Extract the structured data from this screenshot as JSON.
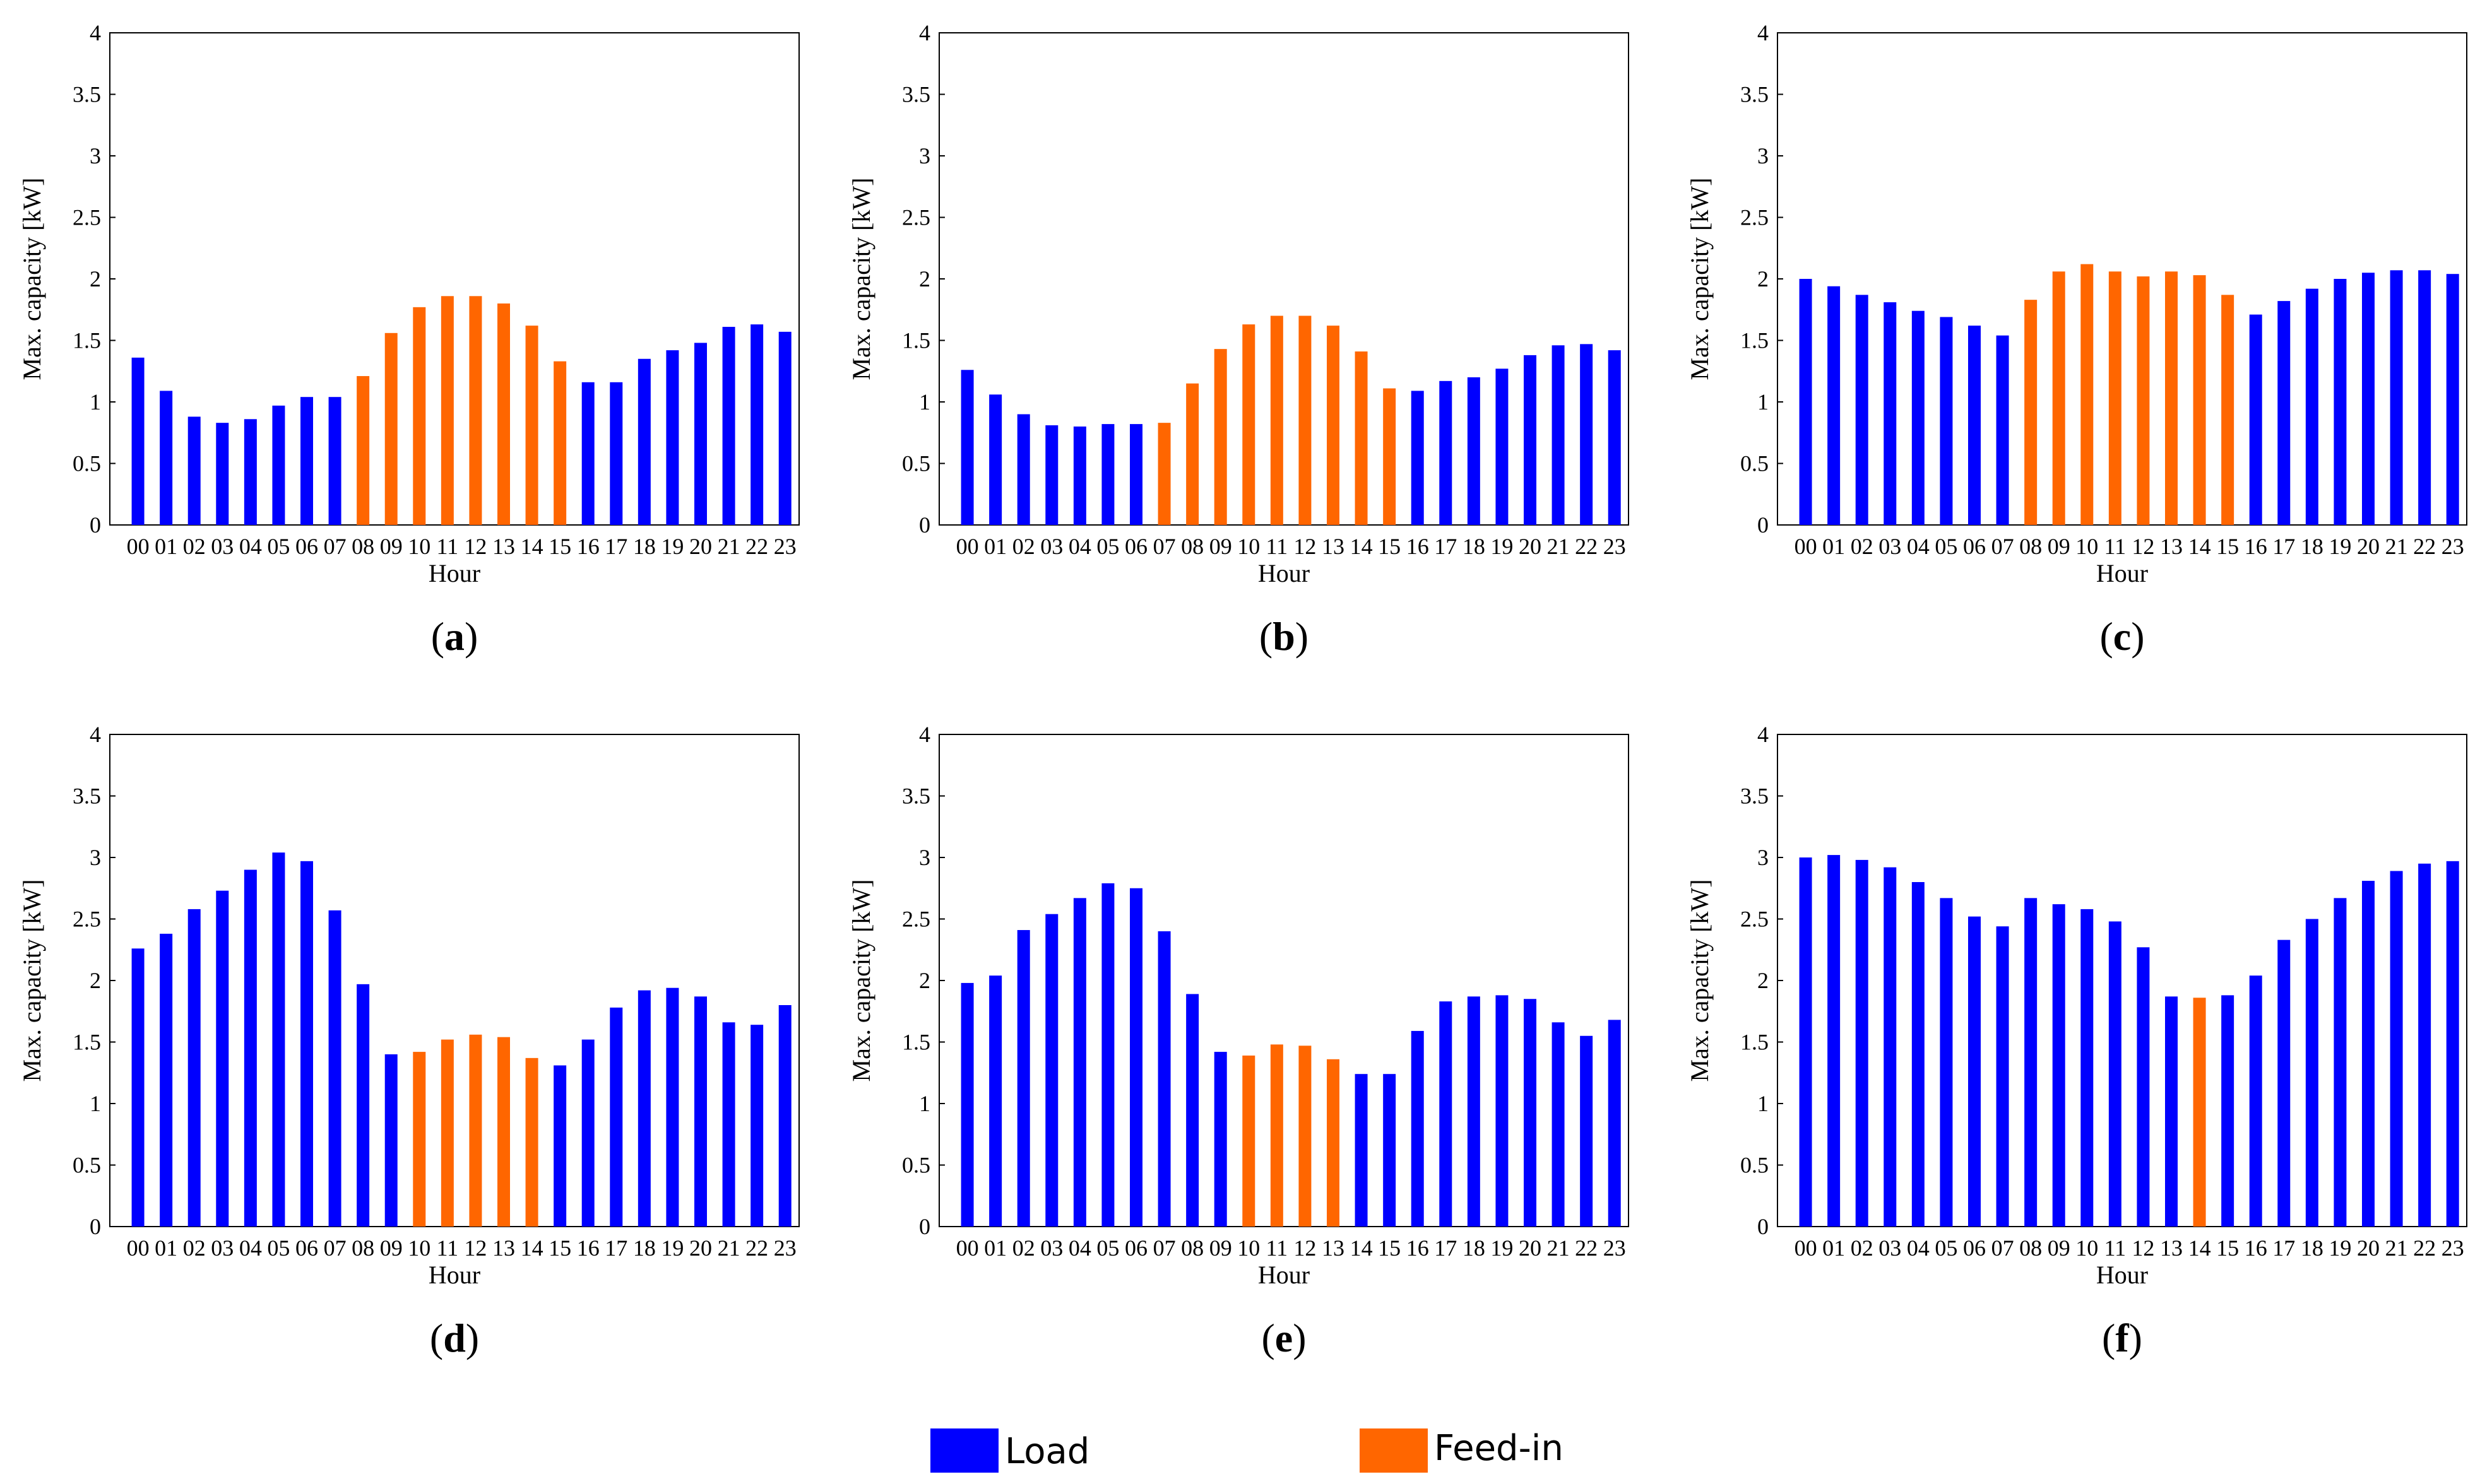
{
  "chart_data": [
    {
      "type": "bar",
      "panel_label": "a",
      "categories": [
        "00",
        "01",
        "02",
        "03",
        "04",
        "05",
        "06",
        "07",
        "08",
        "09",
        "10",
        "11",
        "12",
        "13",
        "14",
        "15",
        "16",
        "17",
        "18",
        "19",
        "20",
        "21",
        "22",
        "23"
      ],
      "values": [
        1.36,
        1.09,
        0.88,
        0.83,
        0.86,
        0.97,
        1.04,
        1.04,
        1.21,
        1.56,
        1.77,
        1.86,
        1.86,
        1.8,
        1.62,
        1.33,
        1.16,
        1.16,
        1.35,
        1.42,
        1.48,
        1.61,
        1.63,
        1.57
      ],
      "series_by_bar": [
        "Load",
        "Load",
        "Load",
        "Load",
        "Load",
        "Load",
        "Load",
        "Load",
        "Feed-in",
        "Feed-in",
        "Feed-in",
        "Feed-in",
        "Feed-in",
        "Feed-in",
        "Feed-in",
        "Feed-in",
        "Load",
        "Load",
        "Load",
        "Load",
        "Load",
        "Load",
        "Load",
        "Load"
      ],
      "xlabel": "Hour",
      "ylabel": "Max. capacity [kW]",
      "ylim": [
        0,
        4
      ],
      "yticks": [
        "0",
        "0.5",
        "1",
        "1.5",
        "2",
        "2.5",
        "3",
        "3.5",
        "4"
      ]
    },
    {
      "type": "bar",
      "panel_label": "b",
      "categories": [
        "00",
        "01",
        "02",
        "03",
        "04",
        "05",
        "06",
        "07",
        "08",
        "09",
        "10",
        "11",
        "12",
        "13",
        "14",
        "15",
        "16",
        "17",
        "18",
        "19",
        "20",
        "21",
        "22",
        "23"
      ],
      "values": [
        1.26,
        1.06,
        0.9,
        0.81,
        0.8,
        0.82,
        0.82,
        0.83,
        1.15,
        1.43,
        1.63,
        1.7,
        1.7,
        1.62,
        1.41,
        1.11,
        1.09,
        1.17,
        1.2,
        1.27,
        1.38,
        1.46,
        1.47,
        1.42
      ],
      "series_by_bar": [
        "Load",
        "Load",
        "Load",
        "Load",
        "Load",
        "Load",
        "Load",
        "Feed-in",
        "Feed-in",
        "Feed-in",
        "Feed-in",
        "Feed-in",
        "Feed-in",
        "Feed-in",
        "Feed-in",
        "Feed-in",
        "Load",
        "Load",
        "Load",
        "Load",
        "Load",
        "Load",
        "Load",
        "Load"
      ],
      "xlabel": "Hour",
      "ylabel": "Max. capacity [kW]",
      "ylim": [
        0,
        4
      ],
      "yticks": [
        "0",
        "0.5",
        "1",
        "1.5",
        "2",
        "2.5",
        "3",
        "3.5",
        "4"
      ]
    },
    {
      "type": "bar",
      "panel_label": "c",
      "categories": [
        "00",
        "01",
        "02",
        "03",
        "04",
        "05",
        "06",
        "07",
        "08",
        "09",
        "10",
        "11",
        "12",
        "13",
        "14",
        "15",
        "16",
        "17",
        "18",
        "19",
        "20",
        "21",
        "22",
        "23"
      ],
      "values": [
        2.0,
        1.94,
        1.87,
        1.81,
        1.74,
        1.69,
        1.62,
        1.54,
        1.83,
        2.06,
        2.12,
        2.06,
        2.02,
        2.06,
        2.03,
        1.87,
        1.71,
        1.82,
        1.92,
        2.0,
        2.05,
        2.07,
        2.07,
        2.04
      ],
      "series_by_bar": [
        "Load",
        "Load",
        "Load",
        "Load",
        "Load",
        "Load",
        "Load",
        "Load",
        "Feed-in",
        "Feed-in",
        "Feed-in",
        "Feed-in",
        "Feed-in",
        "Feed-in",
        "Feed-in",
        "Feed-in",
        "Load",
        "Load",
        "Load",
        "Load",
        "Load",
        "Load",
        "Load",
        "Load"
      ],
      "xlabel": "Hour",
      "ylabel": "Max. capacity [kW]",
      "ylim": [
        0,
        4
      ],
      "yticks": [
        "0",
        "0.5",
        "1",
        "1.5",
        "2",
        "2.5",
        "3",
        "3.5",
        "4"
      ]
    },
    {
      "type": "bar",
      "panel_label": "d",
      "categories": [
        "00",
        "01",
        "02",
        "03",
        "04",
        "05",
        "06",
        "07",
        "08",
        "09",
        "10",
        "11",
        "12",
        "13",
        "14",
        "15",
        "16",
        "17",
        "18",
        "19",
        "20",
        "21",
        "22",
        "23"
      ],
      "values": [
        2.26,
        2.38,
        2.58,
        2.73,
        2.9,
        3.04,
        2.97,
        2.57,
        1.97,
        1.4,
        1.42,
        1.52,
        1.56,
        1.54,
        1.37,
        1.31,
        1.52,
        1.78,
        1.92,
        1.94,
        1.87,
        1.66,
        1.64,
        1.8
      ],
      "series_by_bar": [
        "Load",
        "Load",
        "Load",
        "Load",
        "Load",
        "Load",
        "Load",
        "Load",
        "Load",
        "Load",
        "Feed-in",
        "Feed-in",
        "Feed-in",
        "Feed-in",
        "Feed-in",
        "Load",
        "Load",
        "Load",
        "Load",
        "Load",
        "Load",
        "Load",
        "Load",
        "Load"
      ],
      "xlabel": "Hour",
      "ylabel": "Max. capacity [kW]",
      "ylim": [
        0,
        4
      ],
      "yticks": [
        "0",
        "0.5",
        "1",
        "1.5",
        "2",
        "2.5",
        "3",
        "3.5",
        "4"
      ]
    },
    {
      "type": "bar",
      "panel_label": "e",
      "categories": [
        "00",
        "01",
        "02",
        "03",
        "04",
        "05",
        "06",
        "07",
        "08",
        "09",
        "10",
        "11",
        "12",
        "13",
        "14",
        "15",
        "16",
        "17",
        "18",
        "19",
        "20",
        "21",
        "22",
        "23"
      ],
      "values": [
        1.98,
        2.04,
        2.41,
        2.54,
        2.67,
        2.79,
        2.75,
        2.4,
        1.89,
        1.42,
        1.39,
        1.48,
        1.47,
        1.36,
        1.24,
        1.24,
        1.59,
        1.83,
        1.87,
        1.88,
        1.85,
        1.66,
        1.55,
        1.68
      ],
      "series_by_bar": [
        "Load",
        "Load",
        "Load",
        "Load",
        "Load",
        "Load",
        "Load",
        "Load",
        "Load",
        "Load",
        "Feed-in",
        "Feed-in",
        "Feed-in",
        "Feed-in",
        "Load",
        "Load",
        "Load",
        "Load",
        "Load",
        "Load",
        "Load",
        "Load",
        "Load",
        "Load"
      ],
      "xlabel": "Hour",
      "ylabel": "Max. capacity [kW]",
      "ylim": [
        0,
        4
      ],
      "yticks": [
        "0",
        "0.5",
        "1",
        "1.5",
        "2",
        "2.5",
        "3",
        "3.5",
        "4"
      ]
    },
    {
      "type": "bar",
      "panel_label": "f",
      "categories": [
        "00",
        "01",
        "02",
        "03",
        "04",
        "05",
        "06",
        "07",
        "08",
        "09",
        "10",
        "11",
        "12",
        "13",
        "14",
        "15",
        "16",
        "17",
        "18",
        "19",
        "20",
        "21",
        "22",
        "23"
      ],
      "values": [
        3.0,
        3.02,
        2.98,
        2.92,
        2.8,
        2.67,
        2.52,
        2.44,
        2.67,
        2.62,
        2.58,
        2.48,
        2.27,
        1.87,
        1.86,
        1.88,
        2.04,
        2.33,
        2.5,
        2.67,
        2.81,
        2.89,
        2.95,
        2.97
      ],
      "series_by_bar": [
        "Load",
        "Load",
        "Load",
        "Load",
        "Load",
        "Load",
        "Load",
        "Load",
        "Load",
        "Load",
        "Load",
        "Load",
        "Load",
        "Load",
        "Feed-in",
        "Load",
        "Load",
        "Load",
        "Load",
        "Load",
        "Load",
        "Load",
        "Load",
        "Load"
      ],
      "xlabel": "Hour",
      "ylabel": "Max. capacity [kW]",
      "ylim": [
        0,
        4
      ],
      "yticks": [
        "0",
        "0.5",
        "1",
        "1.5",
        "2",
        "2.5",
        "3",
        "3.5",
        "4"
      ]
    }
  ],
  "legend": [
    {
      "name": "Load",
      "color": "#0000ff"
    },
    {
      "name": "Feed-in",
      "color": "#ff6600"
    }
  ]
}
